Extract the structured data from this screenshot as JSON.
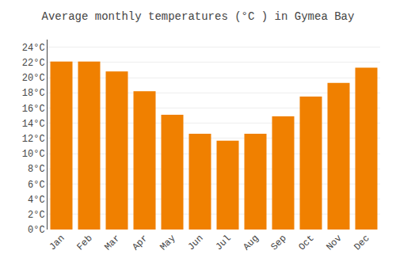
{
  "chart_data": {
    "type": "bar",
    "title": "Average monthly temperatures (°C ) in Gymea Bay",
    "categories": [
      "Jan",
      "Feb",
      "Mar",
      "Apr",
      "May",
      "Jun",
      "Jul",
      "Aug",
      "Sep",
      "Oct",
      "Nov",
      "Dec"
    ],
    "values": [
      22.1,
      22.1,
      20.8,
      18.2,
      15.1,
      12.6,
      11.7,
      12.6,
      14.9,
      17.5,
      19.3,
      21.3
    ],
    "color": "#F08000",
    "ylim": [
      0,
      25
    ],
    "yticks": [
      {
        "value": 0,
        "label": "0°C"
      },
      {
        "value": 2,
        "label": "2°C"
      },
      {
        "value": 4,
        "label": "4°C"
      },
      {
        "value": 6,
        "label": "6°C"
      },
      {
        "value": 8,
        "label": "8°C"
      },
      {
        "value": 10,
        "label": "10°C"
      },
      {
        "value": 12,
        "label": "12°C"
      },
      {
        "value": 14,
        "label": "14°C"
      },
      {
        "value": 16,
        "label": "16°C"
      },
      {
        "value": 18,
        "label": "18°C"
      },
      {
        "value": 20,
        "label": "20°C"
      },
      {
        "value": 22,
        "label": "22°C"
      },
      {
        "value": 24,
        "label": "24°C"
      }
    ],
    "grid": true
  }
}
